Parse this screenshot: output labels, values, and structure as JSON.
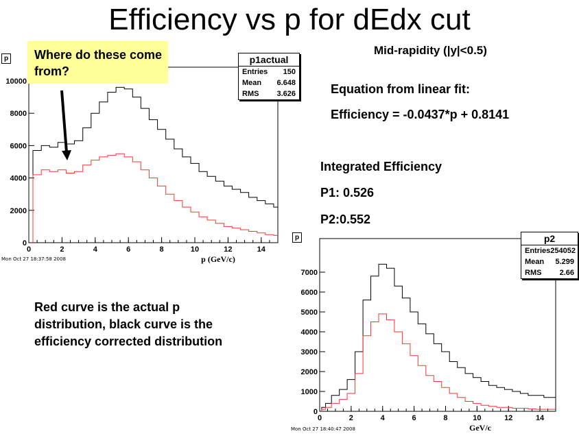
{
  "slide": {
    "title": "Efficiency vs p for dEdx cut",
    "subtitle": "Mid-rapidity (|y|<0.5)",
    "callout": "Where do these come from?",
    "equation_header": "Equation from linear fit:",
    "equation": "Efficiency = -0.0437*p + 0.8141",
    "integrated_header": "Integrated Efficiency",
    "p1_eff": "P1: 0.526",
    "p2_eff": "P2:0.552",
    "note": "Red curve is the actual p distribution, black curve is the efficiency corrected distribution",
    "note_lines": [
      "Red curve is the actual p",
      "distribution, black curve is the",
      "efficiency corrected distribution"
    ]
  },
  "colors": {
    "actual": "#ff3333",
    "corrected": "#000000",
    "callout_bg": "#ffff99"
  },
  "chart_data": [
    {
      "type": "line",
      "name": "p1actual",
      "pad_label": "p",
      "stats": {
        "entries_label": "Entries",
        "entries": "150",
        "mean_label": "Mean",
        "mean": "6.648",
        "rms_label": "RMS",
        "rms": "3.626"
      },
      "xlabel": "p (GeV/c)",
      "ylabel": "",
      "timestamp": "Mon Oct 27 18:37:58 2008",
      "xlim": [
        0,
        15
      ],
      "ylim": [
        0,
        10000
      ],
      "xticks": [
        0,
        2,
        4,
        6,
        8,
        10,
        12,
        14
      ],
      "yticks": [
        0,
        2000,
        4000,
        6000,
        8000,
        10000
      ],
      "x": [
        0.5,
        1,
        1.5,
        2,
        2.5,
        3,
        3.5,
        4,
        4.5,
        5,
        5.5,
        6,
        6.5,
        7,
        7.5,
        8,
        8.5,
        9,
        9.5,
        10,
        10.5,
        11,
        11.5,
        12,
        12.5,
        13,
        13.5,
        14,
        14.5,
        15
      ],
      "series": [
        {
          "color": "#000000",
          "values": [
            5700,
            6000,
            5900,
            6200,
            6100,
            6300,
            7100,
            8000,
            8700,
            9300,
            9600,
            9500,
            9000,
            8300,
            7600,
            7000,
            6400,
            5800,
            5300,
            4900,
            4400,
            4100,
            3800,
            3500,
            3300,
            3100,
            2800,
            2600,
            2400,
            2200
          ]
        },
        {
          "color": "#ff3333",
          "values": [
            4200,
            4500,
            4400,
            4500,
            4300,
            4400,
            4800,
            5100,
            5300,
            5400,
            5500,
            5300,
            5000,
            4500,
            4000,
            3500,
            3000,
            2600,
            2200,
            1900,
            1600,
            1400,
            1200,
            1000,
            900,
            800,
            700,
            600,
            500,
            450
          ]
        }
      ]
    },
    {
      "type": "line",
      "name": "p2",
      "pad_label": "p",
      "stats": {
        "entries_label": "Entries",
        "entries": "254052",
        "mean_label": "Mean",
        "mean": "5.299",
        "rms_label": "RMS",
        "rms": "2.66"
      },
      "xlabel": "GeV/c",
      "ylabel": "",
      "timestamp": "Mon Oct 27 18:40:47 2008",
      "xlim": [
        0,
        15
      ],
      "ylim": [
        0,
        8000
      ],
      "xticks": [
        0,
        2,
        4,
        6,
        8,
        10,
        12,
        14
      ],
      "yticks": [
        0,
        1000,
        2000,
        3000,
        4000,
        5000,
        6000,
        7000
      ],
      "x": [
        0.25,
        0.5,
        1,
        1.5,
        2,
        2.5,
        3,
        3.5,
        4,
        4.5,
        5,
        5.5,
        6,
        6.5,
        7,
        7.5,
        8,
        8.5,
        9,
        9.5,
        10,
        10.5,
        11,
        11.5,
        12,
        12.5,
        13,
        13.5,
        14,
        14.5,
        15
      ],
      "series": [
        {
          "color": "#000000",
          "values": [
            200,
            400,
            800,
            1100,
            1600,
            3000,
            5600,
            6800,
            7400,
            7200,
            6300,
            5700,
            5000,
            4400,
            3900,
            3400,
            3000,
            2500,
            2200,
            1900,
            1700,
            1500,
            1300,
            1200,
            1100,
            1000,
            900,
            800,
            800,
            700,
            700
          ]
        },
        {
          "color": "#ff3333",
          "values": [
            100,
            200,
            400,
            600,
            900,
            1900,
            3800,
            4500,
            4900,
            4600,
            4000,
            3400,
            2800,
            2300,
            1800,
            1500,
            1200,
            900,
            700,
            500,
            400,
            300,
            250,
            200,
            200,
            150,
            150,
            120,
            100,
            100,
            100
          ]
        }
      ]
    }
  ]
}
